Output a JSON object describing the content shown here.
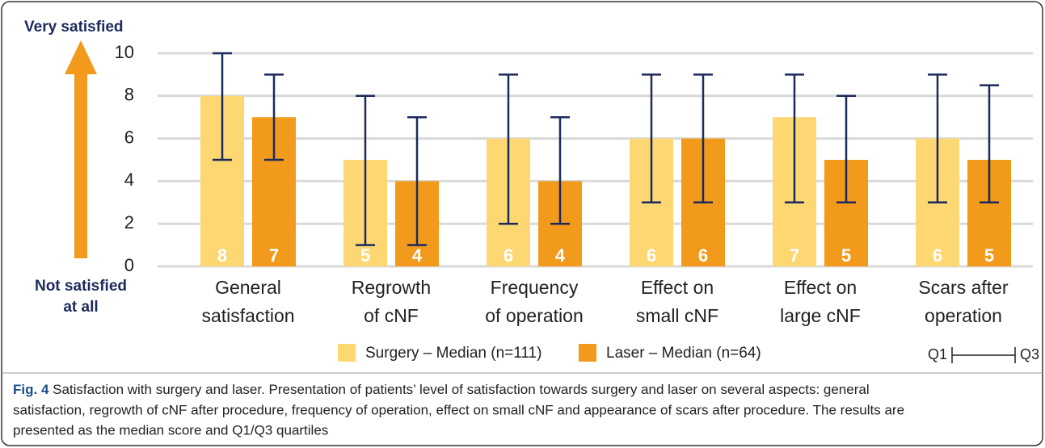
{
  "chart_data": {
    "type": "bar",
    "y_label_top": "Very satisfied",
    "y_label_bottom": [
      "Not satisfied",
      "at all"
    ],
    "categories": [
      [
        "General",
        "satisfaction"
      ],
      [
        "Regrowth",
        "of cNF"
      ],
      [
        "Frequency",
        "of operation"
      ],
      [
        "Effect on",
        "small cNF"
      ],
      [
        "Effect on",
        "large cNF"
      ],
      [
        "Scars after",
        "operation"
      ]
    ],
    "series": [
      {
        "name": "Surgery – Median (n=111)",
        "color": "#fdd772",
        "values": [
          8,
          5,
          6,
          6,
          7,
          6
        ],
        "q1": [
          5,
          1,
          2,
          3,
          3,
          3
        ],
        "q3": [
          10,
          8,
          9,
          9,
          9,
          9
        ]
      },
      {
        "name": "Laser – Median (n=64)",
        "color": "#f29a1c",
        "values": [
          7,
          4,
          4,
          6,
          5,
          5
        ],
        "q1": [
          5,
          1,
          2,
          3,
          3,
          3
        ],
        "q3": [
          9,
          7,
          7,
          9,
          8,
          8.5
        ]
      }
    ],
    "error_color": "#1b2a5c",
    "range_legend": [
      "Q1",
      "Q3"
    ],
    "ylim": [
      0,
      10
    ],
    "yticks": [
      0,
      2,
      4,
      6,
      8,
      10
    ],
    "grid": true
  },
  "caption": {
    "label": "Fig. 4",
    "lines": [
      "Satisfaction with surgery and laser. Presentation of patients’ level of satisfaction towards surgery and laser on several aspects: general",
      "satisfaction, regrowth of cNF after procedure, frequency of operation, effect on small cNF and appearance of scars after procedure. The results are",
      "presented as the median score and Q1/Q3 quartiles"
    ]
  }
}
